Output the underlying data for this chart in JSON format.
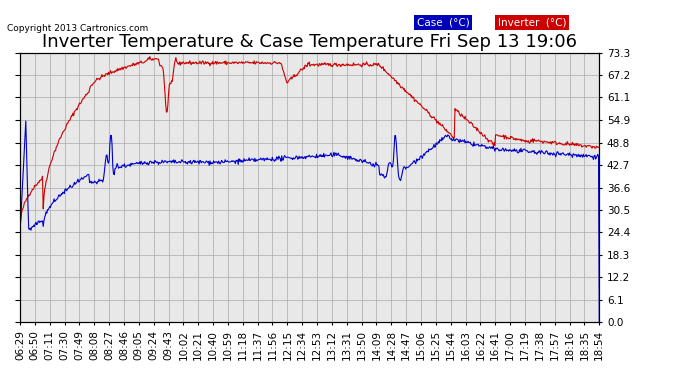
{
  "title": "Inverter Temperature & Case Temperature Fri Sep 13 19:06",
  "copyright": "Copyright 2013 Cartronics.com",
  "ylim": [
    0.0,
    73.3
  ],
  "yticks": [
    0.0,
    6.1,
    12.2,
    18.3,
    24.4,
    30.5,
    36.6,
    42.7,
    48.8,
    54.9,
    61.1,
    67.2,
    73.3
  ],
  "case_color": "#0000cc",
  "inverter_color": "#cc0000",
  "bg_color": "#ffffff",
  "plot_bg_color": "#e8e8e8",
  "grid_color": "#aaaaaa",
  "legend_case_bg": "#0000bb",
  "legend_inverter_bg": "#cc0000",
  "title_fontsize": 13,
  "tick_fontsize": 7.5,
  "xtick_labels": [
    "06:29",
    "06:50",
    "07:11",
    "07:30",
    "07:49",
    "08:08",
    "08:27",
    "08:46",
    "09:05",
    "09:24",
    "09:43",
    "10:02",
    "10:21",
    "10:40",
    "10:59",
    "11:18",
    "11:37",
    "11:56",
    "12:15",
    "12:34",
    "12:53",
    "13:12",
    "13:31",
    "13:50",
    "14:09",
    "14:28",
    "14:47",
    "15:06",
    "15:25",
    "15:44",
    "16:03",
    "16:22",
    "16:41",
    "17:00",
    "17:19",
    "17:38",
    "17:57",
    "18:16",
    "18:35",
    "18:54"
  ],
  "n_points": 800
}
